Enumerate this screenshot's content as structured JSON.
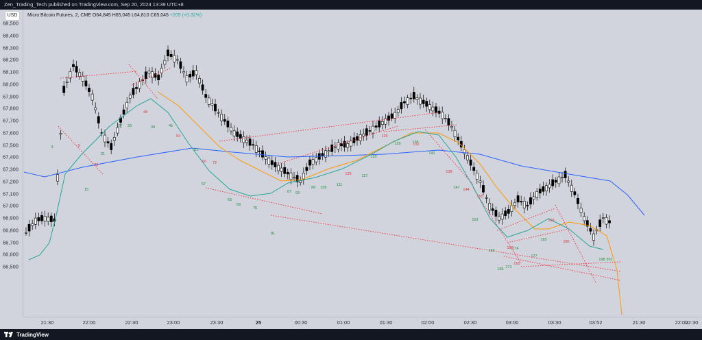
{
  "header": {
    "publish_text": "Zen_Trading_Tech published on TradingView.com, Sep 20, 2024 13:39 UTC+8"
  },
  "toolbar": {
    "currency_label": "USD"
  },
  "legend": {
    "symbol_text": "Micro Bitcoin Futures, 2, CME",
    "open": "O64,845",
    "high": "H65,045",
    "low": "L64,810",
    "close": "C65,045",
    "change": "+205 (+0.32%)"
  },
  "y_axis": {
    "labels": [
      "68,500",
      "68,400",
      "68,300",
      "68,200",
      "68,100",
      "68,000",
      "67,900",
      "67,800",
      "67,700",
      "67,600",
      "67,500",
      "67,400",
      "67,300",
      "67,200",
      "67,100",
      "67,000",
      "66,900",
      "66,800",
      "66,700",
      "66,600",
      "66,500"
    ]
  },
  "x_axis": {
    "labels": [
      "21:30",
      "22:00",
      "22:30",
      "23:00",
      "23:30",
      "25",
      "00:30",
      "01:00",
      "01:30",
      "02:00",
      "02:30",
      "03:00",
      "03:30",
      "03:52",
      "21:30",
      "22:00",
      "22:30"
    ]
  },
  "bar_numbers": {
    "green": [
      "3",
      "15",
      "21",
      "27",
      "33",
      "39",
      "45",
      "51",
      "57",
      "63",
      "69",
      "75",
      "81",
      "87",
      "93",
      "99",
      "105",
      "111",
      "117",
      "123",
      "129",
      "135",
      "141",
      "147",
      "153",
      "159",
      "165",
      "171",
      "174",
      "177",
      "183",
      "198",
      "201"
    ],
    "red": [
      "9",
      "33",
      "48",
      "54",
      "60",
      "72",
      "120",
      "126",
      "132",
      "138",
      "144",
      "150",
      "156",
      "162",
      "168",
      "180"
    ]
  },
  "colors": {
    "ema_slow": "#2962ff",
    "ema_mid": "#ff9800",
    "ema_fast": "#26a69a",
    "trendline": "#f23645",
    "candle_body_up": "#ffffff",
    "candle_body_down": "#000000"
  },
  "footer": {
    "brand": "TradingView"
  }
}
